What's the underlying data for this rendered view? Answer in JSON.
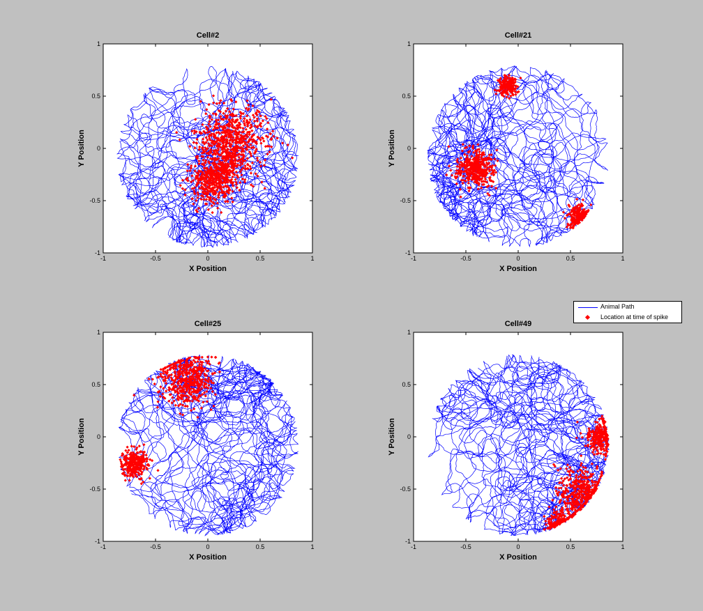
{
  "colors": {
    "background": "#c0c0c0",
    "path": "#0000ff",
    "spike": "#ff0000",
    "axes_bg": "#ffffff"
  },
  "legend": {
    "placement": "right-middle",
    "entries": [
      {
        "label": "Animal Path",
        "marker": "line",
        "color": "#0000ff"
      },
      {
        "label": "Location at time of spike",
        "marker": "dot",
        "color": "#ff0000"
      }
    ]
  },
  "chart_data": [
    {
      "type": "scatter",
      "title": "Cell#2",
      "xlabel": "X Position",
      "ylabel": "Y Position",
      "xlim": [
        -1,
        1
      ],
      "ylim": [
        -1,
        1
      ],
      "xticks": [
        "-1",
        "-0.5",
        "0",
        "0.5",
        "1"
      ],
      "yticks": [
        "-1",
        "-0.5",
        "0",
        "0.5",
        "1"
      ],
      "grid": false,
      "arena": {
        "shape": "circle",
        "center": [
          0,
          -0.08
        ],
        "radius": 0.87
      },
      "series": [
        {
          "name": "Animal Path",
          "style": "line"
        },
        {
          "name": "Location at time of spike",
          "style": "points",
          "clusters": [
            {
              "center": [
                0.22,
                0.05
              ],
              "spread": 0.3
            },
            {
              "center": [
                0.05,
                -0.3
              ],
              "spread": 0.2
            }
          ]
        }
      ]
    },
    {
      "type": "scatter",
      "title": "Cell#21",
      "xlabel": "X Position",
      "ylabel": "Y Position",
      "xlim": [
        -1,
        1
      ],
      "ylim": [
        -1,
        1
      ],
      "xticks": [
        "-1",
        "-0.5",
        "0",
        "0.5",
        "1"
      ],
      "yticks": [
        "-1",
        "-0.5",
        "0",
        "0.5",
        "1"
      ],
      "grid": false,
      "arena": {
        "shape": "circle",
        "center": [
          0,
          -0.08
        ],
        "radius": 0.87
      },
      "series": [
        {
          "name": "Animal Path",
          "style": "line"
        },
        {
          "name": "Location at time of spike",
          "style": "points",
          "clusters": [
            {
              "center": [
                -0.4,
                -0.2
              ],
              "spread": 0.17
            },
            {
              "center": [
                0.58,
                -0.65
              ],
              "spread": 0.1
            },
            {
              "center": [
                -0.1,
                0.6
              ],
              "spread": 0.08
            }
          ]
        }
      ]
    },
    {
      "type": "scatter",
      "title": "Cell#25",
      "xlabel": "X Position",
      "ylabel": "Y Position",
      "xlim": [
        -1,
        1
      ],
      "ylim": [
        -1,
        1
      ],
      "xticks": [
        "-1",
        "-0.5",
        "0",
        "0.5",
        "1"
      ],
      "yticks": [
        "-1",
        "-0.5",
        "0",
        "0.5",
        "1"
      ],
      "grid": false,
      "arena": {
        "shape": "circle",
        "center": [
          0,
          -0.08
        ],
        "radius": 0.87
      },
      "series": [
        {
          "name": "Animal Path",
          "style": "line"
        },
        {
          "name": "Location at time of spike",
          "style": "points",
          "clusters": [
            {
              "center": [
                -0.2,
                0.55
              ],
              "spread": 0.22
            },
            {
              "center": [
                -0.7,
                -0.25
              ],
              "spread": 0.12
            }
          ]
        }
      ]
    },
    {
      "type": "scatter",
      "title": "Cell#49",
      "xlabel": "X Position",
      "ylabel": "Y Position",
      "xlim": [
        -1,
        1
      ],
      "ylim": [
        -1,
        1
      ],
      "xticks": [
        "-1",
        "-0.5",
        "0",
        "0.5",
        "1"
      ],
      "yticks": [
        "-1",
        "-0.5",
        "0",
        "0.5",
        "1"
      ],
      "grid": false,
      "arena": {
        "shape": "circle",
        "center": [
          0,
          -0.08
        ],
        "radius": 0.87
      },
      "series": [
        {
          "name": "Animal Path",
          "style": "line"
        },
        {
          "name": "Location at time of spike",
          "style": "points",
          "clusters": [
            {
              "center": [
                0.62,
                -0.55
              ],
              "spread": 0.22
            },
            {
              "center": [
                0.8,
                0.0
              ],
              "spread": 0.13
            },
            {
              "center": [
                0.4,
                -0.85
              ],
              "spread": 0.12
            }
          ]
        }
      ]
    }
  ]
}
